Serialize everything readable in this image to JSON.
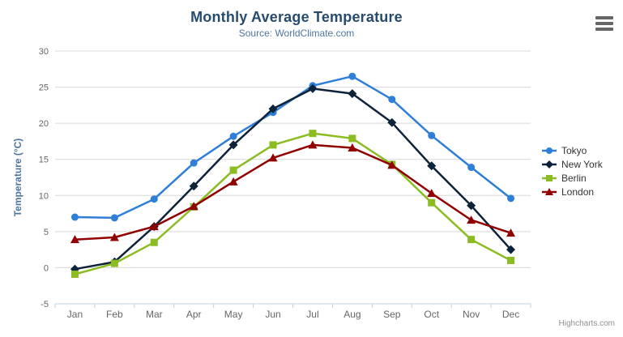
{
  "chart": {
    "title": "Monthly Average Temperature",
    "subtitle": "Source: WorldClimate.com",
    "credits": "Highcharts.com",
    "export_icon": "hamburger-menu-icon"
  },
  "chart_data": {
    "type": "line",
    "title": "Monthly Average Temperature",
    "subtitle": "Source: WorldClimate.com",
    "xlabel": "",
    "ylabel": "Temperature (°C)",
    "categories": [
      "Jan",
      "Feb",
      "Mar",
      "Apr",
      "May",
      "Jun",
      "Jul",
      "Aug",
      "Sep",
      "Oct",
      "Nov",
      "Dec"
    ],
    "yticks": [
      30,
      25,
      20,
      15,
      10,
      5,
      0,
      -5
    ],
    "ylim": [
      -5,
      30
    ],
    "grid": true,
    "legend_position": "right",
    "series": [
      {
        "name": "Tokyo",
        "color": "#2f7ed8",
        "marker": "circle",
        "values": [
          7.0,
          6.9,
          9.5,
          14.5,
          18.2,
          21.5,
          25.2,
          26.5,
          23.3,
          18.3,
          13.9,
          9.6
        ]
      },
      {
        "name": "New York",
        "color": "#0d233a",
        "marker": "diamond",
        "values": [
          -0.2,
          0.8,
          5.7,
          11.3,
          17.0,
          22.0,
          24.8,
          24.1,
          20.1,
          14.1,
          8.6,
          2.5
        ]
      },
      {
        "name": "Berlin",
        "color": "#8bbc21",
        "marker": "square",
        "values": [
          -0.9,
          0.6,
          3.5,
          8.4,
          13.5,
          17.0,
          18.6,
          17.9,
          14.3,
          9.0,
          3.9,
          1.0
        ]
      },
      {
        "name": "London",
        "color": "#910000",
        "marker": "triangle-up",
        "values": [
          3.9,
          4.2,
          5.7,
          8.5,
          11.9,
          15.2,
          17.0,
          16.6,
          14.2,
          10.3,
          6.6,
          4.8
        ]
      }
    ]
  },
  "style": {
    "title_color": "#274b6d",
    "subtitle_color": "#4d759e",
    "axis_title_color": "#4d759e",
    "tick_label_color": "#666666",
    "grid_color": "#d8d8d8",
    "axis_line_color": "#c0d0e0",
    "legend_text_color": "#333333",
    "credits_color": "#909090",
    "export_icon_color": "#666666",
    "background": "#ffffff"
  }
}
